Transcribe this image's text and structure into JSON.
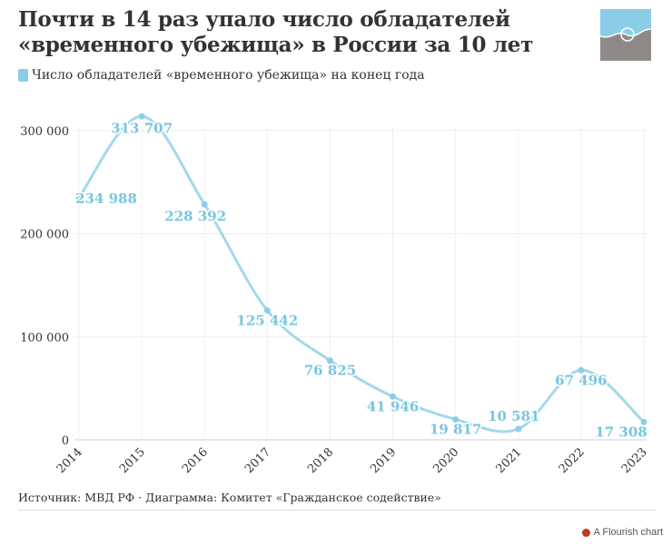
{
  "title": "Почти в 14 раз упало число обладателей «временного убежища» в России за 10 лет",
  "legend": "Число обладателей «временного убежища» на конец года",
  "source": "Источник: МВД РФ · Диаграмма: Комитет «Гражданское содействие»",
  "flourish_label": "A Flourish chart",
  "colors": {
    "line": "#a3d8ea",
    "label": "#78c6e0",
    "logo_top": "#8bcde6",
    "logo_bottom": "#8f8a87"
  },
  "chart_data": {
    "type": "line",
    "title": "Почти в 14 раз упало число обладателей «временного убежища» в России за 10 лет",
    "xlabel": "",
    "ylabel": "",
    "x": [
      "2014",
      "2015",
      "2016",
      "2017",
      "2018",
      "2019",
      "2020",
      "2021",
      "2022",
      "2023"
    ],
    "series": [
      {
        "name": "Число обладателей «временного убежища» на конец года",
        "values": [
          234988,
          313707,
          228392,
          125442,
          76825,
          41946,
          19817,
          10581,
          67496,
          17308
        ],
        "labels": [
          "234 988",
          "313 707",
          "228 392",
          "125 442",
          "76 825",
          "41 946",
          "19 817",
          "10 581",
          "67 496",
          "17 308"
        ]
      }
    ],
    "ylim": [
      0,
      320000
    ],
    "yticks": [
      0,
      100000,
      200000,
      300000
    ],
    "ytick_labels": [
      "0",
      "100 000",
      "200 000",
      "300 000"
    ],
    "grid": true,
    "legend_position": "top-left"
  }
}
